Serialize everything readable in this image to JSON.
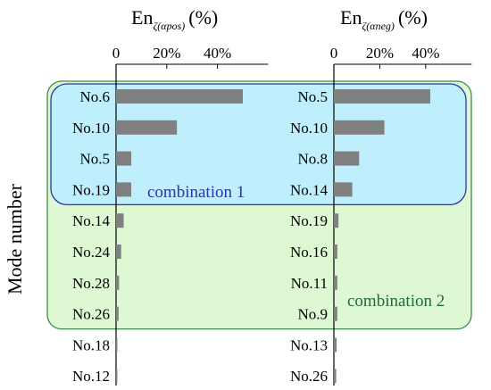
{
  "chart_data": [
    {
      "type": "bar",
      "orientation": "horizontal",
      "title_main": "En",
      "title_subscript": "ζ(αpos)",
      "title_unit": "(%)",
      "categories": [
        "No.6",
        "No.10",
        "No.5",
        "No.19",
        "No.14",
        "No.24",
        "No.28",
        "No.26",
        "No.18",
        "No.12"
      ],
      "values": [
        50,
        24,
        6,
        6,
        3,
        2,
        1.2,
        1,
        0.5,
        0.3
      ],
      "xlim": [
        0,
        60
      ],
      "ticks": [
        0,
        20,
        40
      ],
      "tick_labels": [
        "0",
        "20%",
        "40%"
      ],
      "bar_color": "#808080"
    },
    {
      "type": "bar",
      "orientation": "horizontal",
      "title_main": "En",
      "title_subscript": "ζ(αneg)",
      "title_unit": "(%)",
      "categories": [
        "No.5",
        "No.10",
        "No.8",
        "No.14",
        "No.19",
        "No.16",
        "No.11",
        "No.9",
        "No.13",
        "No.26"
      ],
      "values": [
        42,
        22,
        11,
        8,
        2,
        1.5,
        1.5,
        1.5,
        1.2,
        1
      ],
      "xlim": [
        0,
        60
      ],
      "ticks": [
        0,
        20,
        40
      ],
      "tick_labels": [
        "0",
        "20%",
        "40%"
      ],
      "bar_color": "#808080"
    }
  ],
  "ylabel": "Mode number",
  "groups": [
    {
      "label": "combination 1",
      "first_row": 0,
      "last_row": 3,
      "fill": "#bfeefc",
      "stroke": "#2a35a8"
    },
    {
      "label": "combination 2",
      "first_row": 0,
      "last_row": 7,
      "fill": "#def8d4",
      "stroke": "#3f8a4a"
    }
  ]
}
